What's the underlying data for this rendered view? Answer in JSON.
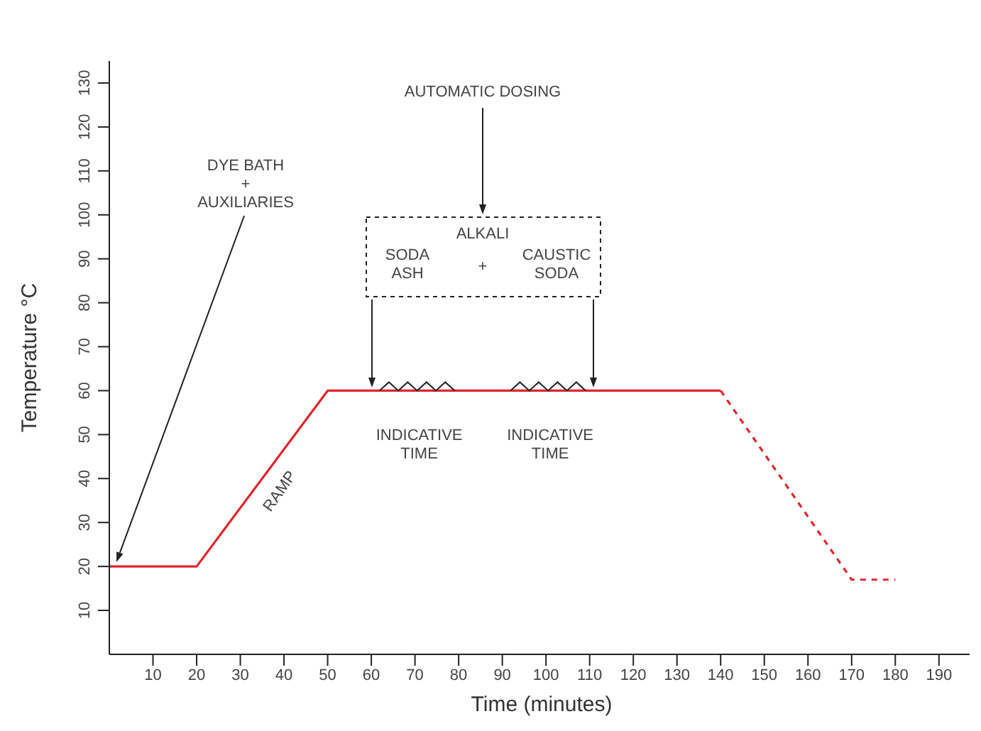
{
  "chart_data": {
    "type": "line",
    "xlabel": "Time (minutes)",
    "ylabel": "Temperature °C",
    "xlim": [
      0,
      198
    ],
    "ylim": [
      0,
      135
    ],
    "xticks": [
      10,
      20,
      30,
      40,
      50,
      60,
      70,
      80,
      90,
      100,
      110,
      120,
      130,
      140,
      150,
      160,
      170,
      180,
      190
    ],
    "yticks": [
      10,
      20,
      30,
      40,
      50,
      60,
      70,
      80,
      90,
      100,
      110,
      120,
      130
    ],
    "marker": "none",
    "series": [
      {
        "color": "#e0262b",
        "line_style": "solid",
        "x": [
          0,
          20,
          50,
          140
        ],
        "values": [
          20,
          20,
          60,
          60
        ]
      },
      {
        "color": "#e0262b",
        "line_style": "dashed",
        "x": [
          140,
          170,
          180
        ],
        "values": [
          60,
          17,
          17
        ]
      }
    ],
    "annotations": [
      "DYE BATH\n+\nAUXILIARIES",
      {
        "text": "RAMP",
        "x": 37,
        "y": 41
      },
      "AUTOMATIC DOSING",
      "ALKALI",
      "SODA\nASH",
      "+",
      "CAUSTIC\nSODA",
      {
        "text": "INDICATIVE\nTIME",
        "x": 70,
        "y": 60
      },
      {
        "text": "INDICATIVE\nTIME",
        "x": 100,
        "y": 60
      }
    ]
  }
}
